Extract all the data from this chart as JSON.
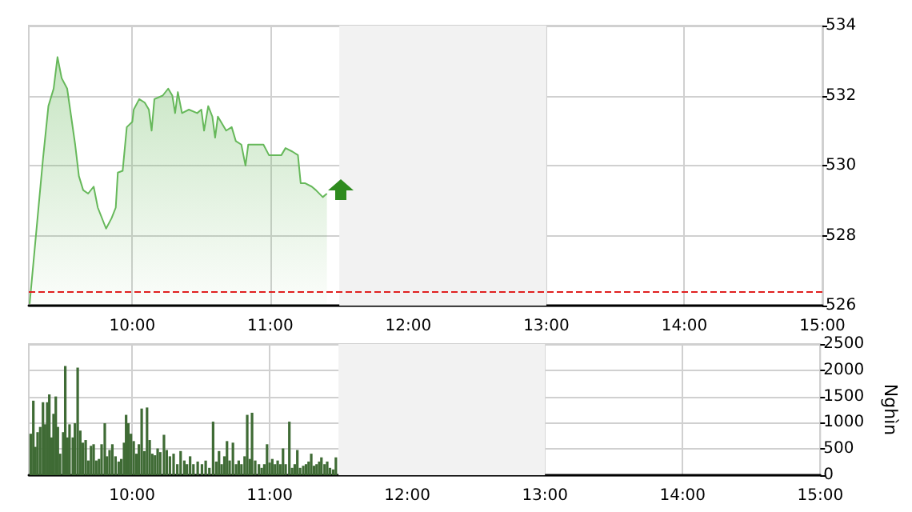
{
  "chart_data": [
    {
      "type": "area",
      "color": "#66b85a",
      "x": [
        9.256,
        9.353,
        9.392,
        9.43,
        9.458,
        9.488,
        9.528,
        9.586,
        9.613,
        9.644,
        9.68,
        9.72,
        9.75,
        9.81,
        9.85,
        9.88,
        9.895,
        9.93,
        9.96,
        10.0,
        10.01,
        10.05,
        10.09,
        10.12,
        10.14,
        10.16,
        10.22,
        10.26,
        10.29,
        10.31,
        10.33,
        10.36,
        10.41,
        10.47,
        10.5,
        10.52,
        10.55,
        10.58,
        10.6,
        10.62,
        10.68,
        10.72,
        10.75,
        10.79,
        10.82,
        10.84,
        10.91,
        10.95,
        10.99,
        11.03,
        11.08,
        11.11,
        11.16,
        11.2,
        11.22,
        11.25,
        11.3,
        11.33,
        11.38,
        11.41
      ],
      "values": [
        526.05,
        530.2,
        531.7,
        532.2,
        533.1,
        532.5,
        532.2,
        530.6,
        529.7,
        529.3,
        529.2,
        529.4,
        528.8,
        528.2,
        528.5,
        528.8,
        529.8,
        529.85,
        531.1,
        531.25,
        531.6,
        531.9,
        531.8,
        531.6,
        531.0,
        531.9,
        532.0,
        532.2,
        532.0,
        531.5,
        532.1,
        531.5,
        531.6,
        531.5,
        531.6,
        531.0,
        531.7,
        531.4,
        530.8,
        531.4,
        531.0,
        531.1,
        530.7,
        530.6,
        530.0,
        530.6,
        530.6,
        530.6,
        530.3,
        530.3,
        530.3,
        530.5,
        530.4,
        530.3,
        529.5,
        529.5,
        529.4,
        529.3,
        529.1,
        529.2
      ],
      "xlim": [
        9.25,
        15
      ],
      "xticks": [
        {
          "value": 10,
          "label": "10:00"
        },
        {
          "value": 11,
          "label": "11:00"
        },
        {
          "value": 12,
          "label": "12:00"
        },
        {
          "value": 13,
          "label": "13:00"
        },
        {
          "value": 14,
          "label": "14:00"
        },
        {
          "value": 15,
          "label": "15:00"
        }
      ],
      "ylim": [
        526,
        534
      ],
      "yticks": [
        526,
        528,
        530,
        532,
        534
      ],
      "grid": true,
      "bands": [
        {
          "axis": "x",
          "from": 11.5,
          "to": 13,
          "color": "#f2f2f2"
        }
      ],
      "ref_lines": [
        {
          "axis": "y",
          "value": 526.4,
          "color": "#e02020",
          "line_style": "dashed"
        }
      ]
    },
    {
      "type": "bar",
      "color": "#3f6b35",
      "ylabel": "Nghìn",
      "x": [
        9.264,
        9.283,
        9.298,
        9.314,
        9.333,
        9.353,
        9.368,
        9.384,
        9.399,
        9.415,
        9.43,
        9.446,
        9.461,
        9.477,
        9.5,
        9.515,
        9.531,
        9.546,
        9.57,
        9.585,
        9.605,
        9.624,
        9.643,
        9.663,
        9.682,
        9.702,
        9.721,
        9.74,
        9.76,
        9.779,
        9.802,
        9.818,
        9.837,
        9.857,
        9.88,
        9.903,
        9.922,
        9.942,
        9.957,
        9.973,
        9.992,
        10.012,
        10.031,
        10.05,
        10.07,
        10.089,
        10.109,
        10.128,
        10.147,
        10.167,
        10.186,
        10.205,
        10.232,
        10.252,
        10.275,
        10.302,
        10.329,
        10.353,
        10.38,
        10.399,
        10.422,
        10.446,
        10.477,
        10.508,
        10.535,
        10.562,
        10.589,
        10.612,
        10.632,
        10.651,
        10.671,
        10.69,
        10.709,
        10.733,
        10.756,
        10.775,
        10.795,
        10.818,
        10.837,
        10.856,
        10.872,
        10.895,
        10.922,
        10.942,
        10.961,
        10.981,
        11.0,
        11.019,
        11.039,
        11.058,
        11.077,
        11.097,
        11.116,
        11.143,
        11.163,
        11.182,
        11.201,
        11.221,
        11.244,
        11.264,
        11.283,
        11.302,
        11.322,
        11.341,
        11.36,
        11.376,
        11.399,
        11.418,
        11.438,
        11.461,
        11.481
      ],
      "values": [
        790,
        1420,
        540,
        820,
        920,
        1390,
        970,
        1390,
        1540,
        720,
        1170,
        1500,
        920,
        410,
        820,
        2080,
        720,
        970,
        720,
        990,
        2050,
        850,
        620,
        670,
        280,
        560,
        590,
        280,
        310,
        590,
        990,
        360,
        480,
        590,
        360,
        260,
        310,
        620,
        1150,
        990,
        790,
        650,
        410,
        590,
        1270,
        460,
        1290,
        670,
        410,
        380,
        510,
        440,
        770,
        480,
        360,
        410,
        210,
        460,
        280,
        210,
        360,
        210,
        260,
        210,
        280,
        140,
        1020,
        260,
        460,
        210,
        360,
        650,
        280,
        620,
        210,
        280,
        210,
        360,
        1150,
        310,
        1190,
        280,
        210,
        140,
        210,
        590,
        240,
        310,
        210,
        280,
        210,
        510,
        210,
        1020,
        140,
        210,
        480,
        140,
        180,
        210,
        260,
        410,
        180,
        210,
        260,
        340,
        210,
        260,
        140,
        110,
        340
      ],
      "xlim": [
        9.25,
        15
      ],
      "xticks": [
        {
          "value": 10,
          "label": "10:00"
        },
        {
          "value": 11,
          "label": "11:00"
        },
        {
          "value": 12,
          "label": "12:00"
        },
        {
          "value": 13,
          "label": "13:00"
        },
        {
          "value": 14,
          "label": "14:00"
        },
        {
          "value": 15,
          "label": "15:00"
        }
      ],
      "ylim": [
        0,
        2500
      ],
      "yticks": [
        0,
        500,
        1000,
        1500,
        2000,
        2500
      ],
      "grid": true,
      "bands": [
        {
          "axis": "x",
          "from": 11.5,
          "to": 13,
          "color": "#f2f2f2"
        }
      ]
    }
  ]
}
